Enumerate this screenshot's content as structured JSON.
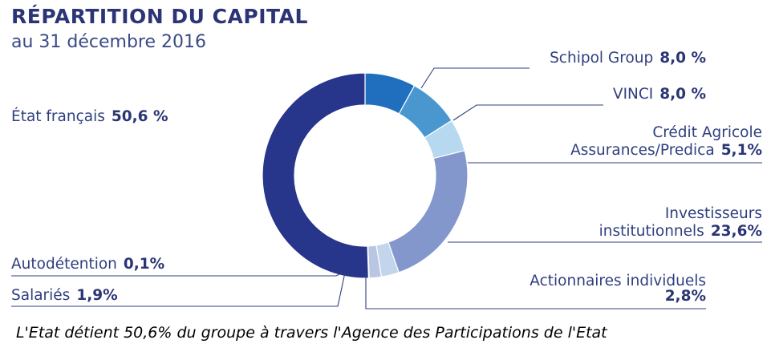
{
  "header": {
    "title": "RÉPARTITION DU CAPITAL",
    "subtitle": "au 31 décembre 2016"
  },
  "footnote": "L'Etat détient 50,6% du groupe à travers l'Agence des Participations de l'Etat",
  "colors": {
    "etat": "#27358a",
    "schipol": "#1f6fbe",
    "vinci": "#4a97cf",
    "credit_agricole": "#b6d9f0",
    "investisseurs": "#8397cc",
    "actionnaires": "#c2d5ea",
    "salaries": "#b8c6e3",
    "autodetention": "#1f5fa8",
    "leader": "#2f3f7f"
  },
  "chart_data": {
    "type": "pie",
    "donut": true,
    "start": "Schipol Group at top, clockwise",
    "slices": [
      {
        "key": "schipol",
        "label_lines": [
          "Schipol Group"
        ],
        "value": 8.0,
        "value_text": "8,0 %",
        "color": "#1f6fbe"
      },
      {
        "key": "vinci",
        "label_lines": [
          "VINCI"
        ],
        "value": 8.0,
        "value_text": "8,0 %",
        "color": "#4a97cf"
      },
      {
        "key": "credit_agricole",
        "label_lines": [
          "Crédit Agricole",
          "Assurances/Predica"
        ],
        "value": 5.1,
        "value_text": "5,1%",
        "color": "#b6d9f0"
      },
      {
        "key": "investisseurs",
        "label_lines": [
          "Investisseurs",
          "institutionnels"
        ],
        "value": 23.6,
        "value_text": "23,6%",
        "color": "#8397cc"
      },
      {
        "key": "actionnaires",
        "label_lines": [
          "Actionnaires individuels"
        ],
        "value": 2.8,
        "value_text": "2,8%",
        "color": "#c2d5ea"
      },
      {
        "key": "salaries",
        "label_lines": [
          "Salariés"
        ],
        "value": 1.9,
        "value_text": "1,9%",
        "color": "#b8c6e3"
      },
      {
        "key": "autodetention",
        "label_lines": [
          "Autodétention"
        ],
        "value": 0.1,
        "value_text": "0,1%",
        "color": "#1f5fa8"
      },
      {
        "key": "etat",
        "label_lines": [
          "État français"
        ],
        "value": 50.6,
        "value_text": "50,6 %",
        "color": "#27358a"
      }
    ]
  }
}
